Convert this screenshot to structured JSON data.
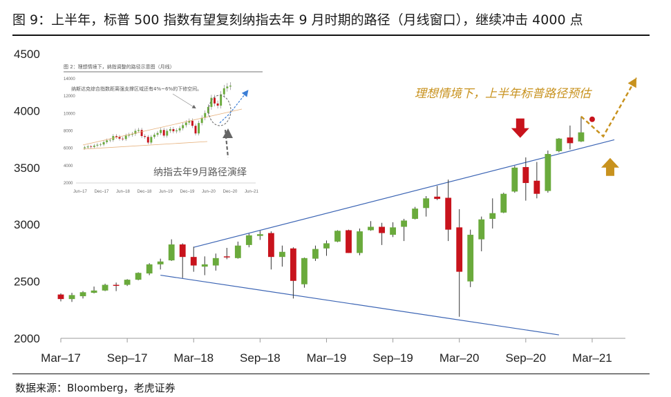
{
  "title": "图 9：上半年，标普 500 指数有望复刻纳指去年 9 月时期的路径（月线窗口），继续冲击 4000 点",
  "source": "数据来源：Bloomberg，老虎证券",
  "colors": {
    "up": "#6aaa3c",
    "down": "#c8131c",
    "trend": "#3b64b4",
    "orange": "#c8921e",
    "red_arrow": "#c8131c"
  },
  "chart_data": {
    "type": "candlestick",
    "x_tick_labels": [
      "Mar–17",
      "Sep–17",
      "Mar–18",
      "Sep–18",
      "Mar–19",
      "Sep–19",
      "Mar–20",
      "Sep–20",
      "Mar–21"
    ],
    "x_ticks": [
      "2017-03",
      "2017-09",
      "2018-03",
      "2018-09",
      "2019-03",
      "2019-09",
      "2020-03",
      "2020-09",
      "2021-03"
    ],
    "y_ticks": [
      2000,
      2500,
      3000,
      3500,
      4000,
      4500
    ],
    "ylim": [
      2000,
      4500
    ],
    "xlim": [
      "2017-03",
      "2021-06"
    ],
    "candles": [
      {
        "m": "2017-03",
        "o": 2385,
        "h": 2395,
        "l": 2325,
        "c": 2345
      },
      {
        "m": "2017-04",
        "o": 2345,
        "h": 2400,
        "l": 2320,
        "c": 2380
      },
      {
        "m": "2017-05",
        "o": 2370,
        "h": 2415,
        "l": 2350,
        "c": 2405
      },
      {
        "m": "2017-06",
        "o": 2400,
        "h": 2455,
        "l": 2395,
        "c": 2420
      },
      {
        "m": "2017-07",
        "o": 2420,
        "h": 2480,
        "l": 2415,
        "c": 2470
      },
      {
        "m": "2017-08",
        "o": 2470,
        "h": 2490,
        "l": 2415,
        "c": 2465
      },
      {
        "m": "2017-09",
        "o": 2470,
        "h": 2520,
        "l": 2460,
        "c": 2515
      },
      {
        "m": "2017-10",
        "o": 2515,
        "h": 2580,
        "l": 2510,
        "c": 2575
      },
      {
        "m": "2017-11",
        "o": 2570,
        "h": 2660,
        "l": 2555,
        "c": 2650
      },
      {
        "m": "2017-12",
        "o": 2650,
        "h": 2700,
        "l": 2605,
        "c": 2675
      },
      {
        "m": "2018-01",
        "o": 2685,
        "h": 2870,
        "l": 2680,
        "c": 2825
      },
      {
        "m": "2018-02",
        "o": 2825,
        "h": 2835,
        "l": 2530,
        "c": 2715
      },
      {
        "m": "2018-03",
        "o": 2715,
        "h": 2805,
        "l": 2585,
        "c": 2640
      },
      {
        "m": "2018-04",
        "o": 2630,
        "h": 2720,
        "l": 2555,
        "c": 2650
      },
      {
        "m": "2018-05",
        "o": 2640,
        "h": 2745,
        "l": 2595,
        "c": 2705
      },
      {
        "m": "2018-06",
        "o": 2720,
        "h": 2795,
        "l": 2695,
        "c": 2715
      },
      {
        "m": "2018-07",
        "o": 2705,
        "h": 2850,
        "l": 2700,
        "c": 2815
      },
      {
        "m": "2018-08",
        "o": 2820,
        "h": 2920,
        "l": 2800,
        "c": 2905
      },
      {
        "m": "2018-09",
        "o": 2900,
        "h": 2945,
        "l": 2865,
        "c": 2915
      },
      {
        "m": "2018-10",
        "o": 2925,
        "h": 2940,
        "l": 2605,
        "c": 2715
      },
      {
        "m": "2018-11",
        "o": 2715,
        "h": 2815,
        "l": 2630,
        "c": 2760
      },
      {
        "m": "2018-12",
        "o": 2790,
        "h": 2800,
        "l": 2350,
        "c": 2505
      },
      {
        "m": "2019-01",
        "o": 2475,
        "h": 2710,
        "l": 2445,
        "c": 2705
      },
      {
        "m": "2019-02",
        "o": 2700,
        "h": 2815,
        "l": 2680,
        "c": 2785
      },
      {
        "m": "2019-03",
        "o": 2790,
        "h": 2860,
        "l": 2725,
        "c": 2835
      },
      {
        "m": "2019-04",
        "o": 2850,
        "h": 2950,
        "l": 2845,
        "c": 2945
      },
      {
        "m": "2019-05",
        "o": 2950,
        "h": 2955,
        "l": 2750,
        "c": 2750
      },
      {
        "m": "2019-06",
        "o": 2750,
        "h": 2965,
        "l": 2730,
        "c": 2940
      },
      {
        "m": "2019-07",
        "o": 2950,
        "h": 3030,
        "l": 2945,
        "c": 2980
      },
      {
        "m": "2019-08",
        "o": 2980,
        "h": 3015,
        "l": 2820,
        "c": 2925
      },
      {
        "m": "2019-09",
        "o": 2910,
        "h": 3020,
        "l": 2890,
        "c": 2975
      },
      {
        "m": "2019-10",
        "o": 2980,
        "h": 3050,
        "l": 2855,
        "c": 3035
      },
      {
        "m": "2019-11",
        "o": 3050,
        "h": 3155,
        "l": 3045,
        "c": 3140
      },
      {
        "m": "2019-12",
        "o": 3145,
        "h": 3250,
        "l": 3070,
        "c": 3230
      },
      {
        "m": "2020-01",
        "o": 3245,
        "h": 3340,
        "l": 3215,
        "c": 3225
      },
      {
        "m": "2020-02",
        "o": 3235,
        "h": 3395,
        "l": 2855,
        "c": 2955
      },
      {
        "m": "2020-03",
        "o": 2975,
        "h": 3135,
        "l": 2190,
        "c": 2585
      },
      {
        "m": "2020-04",
        "o": 2500,
        "h": 2955,
        "l": 2450,
        "c": 2910
      },
      {
        "m": "2020-05",
        "o": 2870,
        "h": 3070,
        "l": 2765,
        "c": 3045
      },
      {
        "m": "2020-06",
        "o": 3050,
        "h": 3230,
        "l": 2965,
        "c": 3100
      },
      {
        "m": "2020-07",
        "o": 3105,
        "h": 3280,
        "l": 3100,
        "c": 3270
      },
      {
        "m": "2020-08",
        "o": 3290,
        "h": 3515,
        "l": 3280,
        "c": 3500
      },
      {
        "m": "2020-09",
        "o": 3505,
        "h": 3590,
        "l": 3210,
        "c": 3365
      },
      {
        "m": "2020-10",
        "o": 3385,
        "h": 3550,
        "l": 3230,
        "c": 3270
      },
      {
        "m": "2020-11",
        "o": 3295,
        "h": 3650,
        "l": 3280,
        "c": 3620
      },
      {
        "m": "2020-12",
        "o": 3645,
        "h": 3760,
        "l": 3635,
        "c": 3755
      },
      {
        "m": "2021-01",
        "o": 3765,
        "h": 3870,
        "l": 3660,
        "c": 3715
      },
      {
        "m": "2021-02",
        "o": 3730,
        "h": 3950,
        "l": 3725,
        "c": 3810
      }
    ],
    "trend_lines": [
      {
        "from": {
          "m": "2018-03",
          "y": 2800
        },
        "to": {
          "m": "2021-05",
          "y": 3745
        }
      },
      {
        "from": {
          "m": "2017-12",
          "y": 2555
        },
        "to": {
          "m": "2020-12",
          "y": 2030
        }
      }
    ],
    "projection": {
      "color": "#c8921e",
      "points": [
        {
          "m": "2021-02",
          "y": 3950
        },
        {
          "m": "2021-04",
          "y": 3775
        },
        {
          "m": "2021-07",
          "y": 4290
        }
      ]
    },
    "projection_marker": {
      "m": "2021-03",
      "y": 3925
    },
    "annotations": {
      "projection_label": "理想情境下，上半年标普路径预估",
      "red_arrow_down": {
        "m": "2020-09",
        "y": 3750
      },
      "gold_arrow_up": {
        "m": "2021-04",
        "y": 3470
      }
    },
    "inset": {
      "title": "图 2：理想情境下，纳指调整的路径示意图（月线）",
      "note": "纳斯达克综合指数距离强支撑区域还有4%~6%的下修空间。",
      "y_ticks": [
        2000,
        4000,
        6000,
        8000,
        10000,
        12000,
        14000
      ],
      "x_tick_labels": [
        "Jun–17",
        "Dec–17",
        "Jun–18",
        "Dec–18",
        "Jun–19",
        "Dec–19",
        "Jun–20",
        "Dec–20",
        "Jun–21"
      ],
      "path_label": "纳指去年9月路径演绎"
    }
  }
}
